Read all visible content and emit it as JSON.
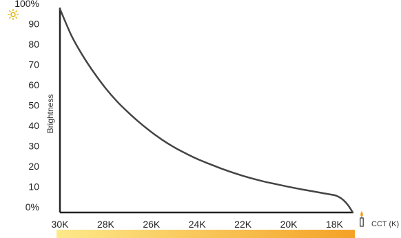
{
  "chart_data": {
    "type": "line",
    "title": "",
    "xlabel": "CCT (K)",
    "ylabel": "Brightness",
    "x_ticks": [
      "30K",
      "28K",
      "26K",
      "24K",
      "22K",
      "20K",
      "18K"
    ],
    "y_ticks": [
      "0%",
      "10",
      "20",
      "30",
      "40",
      "50",
      "60",
      "70",
      "80",
      "90",
      "100%"
    ],
    "xlim": [
      30000,
      17200
    ],
    "ylim": [
      0,
      100
    ],
    "grid": false,
    "series": [
      {
        "x": [
          30000,
          29500,
          29000,
          28500,
          28000,
          27500,
          27000,
          26500,
          26000,
          25500,
          25000,
          24500,
          24000,
          23500,
          23000,
          22500,
          22000,
          21500,
          21000,
          20500,
          20000,
          19500,
          19000,
          18500,
          18000,
          17800,
          17600,
          17400,
          17200
        ],
        "y": [
          100,
          87,
          77,
          68.5,
          61,
          54.5,
          49,
          44,
          39.5,
          35.5,
          32,
          29,
          26.3,
          24,
          21.8,
          19.8,
          18,
          16.4,
          15,
          13.8,
          12.6,
          11.5,
          10.5,
          9.5,
          8.5,
          7.6,
          6,
          3.5,
          0
        ]
      }
    ],
    "gradient_bar": {
      "start_color": "#fde98a",
      "end_color": "#f4a227"
    },
    "line_color": "#444444",
    "icons": {
      "y_max": "sun-icon",
      "x_end": "candle-icon"
    }
  }
}
